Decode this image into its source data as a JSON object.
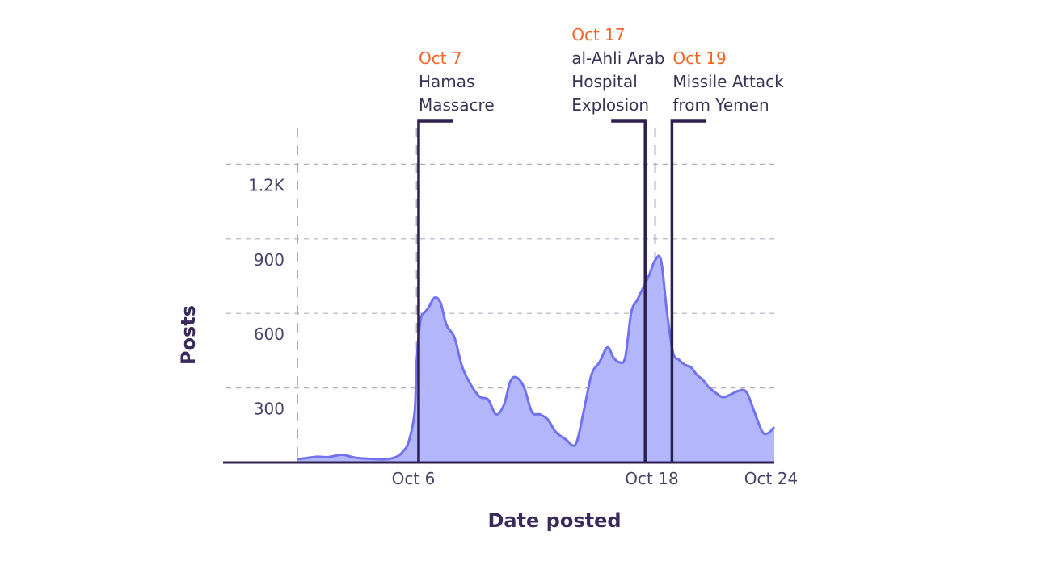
{
  "chart_data": {
    "type": "area",
    "title": "",
    "xlabel": "Date posted",
    "ylabel": "Posts",
    "ylim": [
      0,
      1250
    ],
    "yticks": [
      {
        "value": 300,
        "label": "300"
      },
      {
        "value": 600,
        "label": "600"
      },
      {
        "value": 900,
        "label": "900"
      },
      {
        "value": 1200,
        "label": "1.2K"
      }
    ],
    "xticks": [
      {
        "value": 6,
        "label": "Oct 6"
      },
      {
        "value": 18,
        "label": "Oct 18"
      },
      {
        "value": 24,
        "label": "Oct 24"
      }
    ],
    "xlim": [
      0,
      24
    ],
    "grid": true,
    "dashed_verticals": [
      0,
      6,
      18
    ],
    "colors": {
      "area_fill": "#b3b6fb",
      "area_stroke": "#7072ee",
      "axis": "#2e1f4f",
      "grid": "#b0adbd",
      "annotation_date": "#f2652a",
      "annotation_text": "#3a3355"
    },
    "series": [
      {
        "x": [
          0,
          0.5,
          1,
          1.5,
          2,
          2.3,
          2.7,
          3,
          3.5,
          4,
          4.5,
          5,
          5.3,
          5.6,
          5.9,
          6.0,
          6.2,
          6.4,
          6.6,
          6.9,
          7.2,
          7.5,
          7.9,
          8.3,
          8.8,
          9.2,
          9.6,
          10.0,
          10.4,
          10.7,
          11.0,
          11.4,
          11.8,
          12.2,
          12.6,
          13.0,
          13.5,
          14.0,
          14.4,
          14.8,
          15.2,
          15.6,
          15.9,
          16.2,
          16.5,
          16.8,
          17.1,
          17.4,
          17.7,
          18.0,
          18.3,
          18.6,
          18.9,
          19.2,
          19.5,
          19.8,
          20.1,
          20.4,
          20.7,
          21.0,
          21.4,
          21.8,
          22.2,
          22.6,
          23.0,
          23.4,
          23.7,
          24.0
        ],
        "values": [
          10,
          15,
          20,
          18,
          25,
          28,
          20,
          15,
          12,
          10,
          10,
          20,
          40,
          80,
          200,
          400,
          570,
          600,
          620,
          660,
          640,
          550,
          500,
          380,
          300,
          260,
          250,
          190,
          230,
          320,
          340,
          300,
          200,
          190,
          170,
          120,
          90,
          70,
          200,
          350,
          400,
          460,
          420,
          400,
          420,
          600,
          650,
          700,
          750,
          810,
          810,
          600,
          440,
          410,
          390,
          380,
          350,
          330,
          300,
          280,
          260,
          270,
          285,
          280,
          200,
          120,
          115,
          140
        ]
      }
    ],
    "annotations": [
      {
        "date": "Oct 7",
        "lines": [
          "Hamas",
          "Massacre"
        ],
        "x": 6.1
      },
      {
        "date": "Oct 17",
        "lines": [
          "al-Ahli Arab",
          "Hospital",
          "Explosion"
        ],
        "x": 17.5
      },
      {
        "date": "Oct 19",
        "lines": [
          "Missile Attack",
          "from Yemen"
        ],
        "x": 18.85
      }
    ]
  }
}
